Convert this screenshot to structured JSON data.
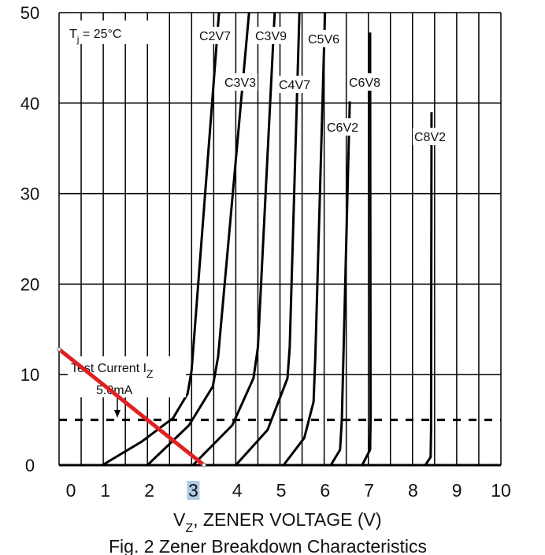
{
  "chart_data": {
    "type": "line",
    "title": "Fig. 2  Zener Breakdown Characteristics",
    "xlabel": "V_Z, ZENER VOLTAGE (V)",
    "xlabel_main": "V",
    "xlabel_sub": "Z",
    "xlabel_rest": ", ZENER VOLTAGE (V)",
    "ylabel": "",
    "xlim": [
      0,
      10
    ],
    "ylim": [
      0,
      50
    ],
    "x_ticks": [
      "0",
      "1",
      "2",
      "3",
      "4",
      "5",
      "6",
      "7",
      "8",
      "9",
      "10"
    ],
    "y_ticks": [
      "0",
      "10",
      "20",
      "30",
      "40",
      "50"
    ],
    "grid": true,
    "highlighted_tick": "3",
    "condition": {
      "main": "T",
      "sub": "j",
      "rest": " = 25°C"
    },
    "test_current": {
      "line1_main": "Test Current I",
      "line1_sub": "Z",
      "line2": "5.0mA",
      "value": 5
    },
    "series": [
      {
        "name": "C2V7",
        "points": [
          [
            0.98,
            0
          ],
          [
            1.87,
            2.6
          ],
          [
            2.58,
            5.2
          ],
          [
            2.91,
            7.9
          ],
          [
            3.0,
            10.5
          ],
          [
            3.62,
            50
          ]
        ]
      },
      {
        "name": "C3V3",
        "points": [
          [
            2.0,
            0
          ],
          [
            2.94,
            4.4
          ],
          [
            3.48,
            8.7
          ],
          [
            3.6,
            12
          ],
          [
            4.3,
            50
          ]
        ]
      },
      {
        "name": "C3V9",
        "points": [
          [
            3.03,
            0
          ],
          [
            3.92,
            4.4
          ],
          [
            4.4,
            9.6
          ],
          [
            4.5,
            13
          ],
          [
            4.88,
            50
          ]
        ]
      },
      {
        "name": "C4V7",
        "points": [
          [
            4.0,
            0
          ],
          [
            4.72,
            3.9
          ],
          [
            5.17,
            9.6
          ],
          [
            5.22,
            13
          ],
          [
            5.44,
            50
          ]
        ]
      },
      {
        "name": "C5V6",
        "points": [
          [
            5.08,
            0
          ],
          [
            5.55,
            3
          ],
          [
            5.76,
            7
          ],
          [
            5.8,
            12
          ],
          [
            6.02,
            50
          ]
        ]
      },
      {
        "name": "C6V2",
        "points": [
          [
            6.15,
            0
          ],
          [
            6.36,
            1.7
          ],
          [
            6.4,
            5
          ],
          [
            6.58,
            40.2
          ]
        ]
      },
      {
        "name": "C6V8",
        "points": [
          [
            6.86,
            0
          ],
          [
            7.04,
            1.7
          ],
          [
            7.05,
            5
          ],
          [
            7.04,
            47.8
          ]
        ]
      },
      {
        "name": "C8V2",
        "points": [
          [
            8.29,
            0
          ],
          [
            8.41,
            0.9
          ],
          [
            8.42,
            4
          ],
          [
            8.43,
            39
          ]
        ]
      }
    ],
    "annotation_line": {
      "color": "#e02020",
      "from": [
        0,
        12.8
      ],
      "to": [
        3.28,
        0
      ]
    },
    "colors": {
      "curve": "#000000",
      "grid": "#000000",
      "highlight": "#aecbe6"
    }
  }
}
